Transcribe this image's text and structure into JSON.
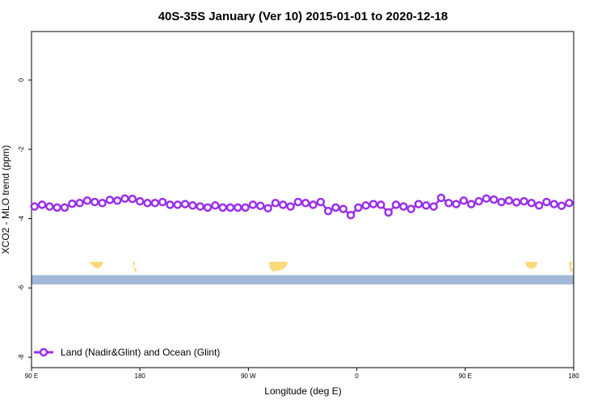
{
  "chart_data": {
    "type": "line",
    "title": "40S-35S January (Ver 10)   2015-01-01 to 2020-12-18",
    "xlabel": "Longitude (deg E)",
    "ylabel": "XCO2 - MLO trend (ppm)",
    "xlim": [
      90,
      450
    ],
    "ylim": [
      -8.3,
      1.4
    ],
    "x_ticks": [
      {
        "value": 90,
        "label": "90 E"
      },
      {
        "value": 162,
        "label": "180"
      },
      {
        "value": 234,
        "label": "90 W"
      },
      {
        "value": 306,
        "label": "0"
      },
      {
        "value": 378,
        "label": "90 E"
      },
      {
        "value": 450,
        "label": "180"
      }
    ],
    "y_ticks": [
      {
        "value": 0,
        "label": "0"
      },
      {
        "value": -2,
        "label": "-2"
      },
      {
        "value": -4,
        "label": "-4"
      },
      {
        "value": -6,
        "label": "-6"
      },
      {
        "value": -8,
        "label": "-8"
      }
    ],
    "legend": {
      "position": "bottom-left"
    },
    "land_ocean_strip": {
      "y_top": -5.63,
      "y_bottom": -5.9,
      "ocean_color": "#a3b8d9",
      "land_color": "#fcd97a"
    },
    "series": [
      {
        "name": "Land (Nadir&Glint) and Ocean (Glint)",
        "color": "#9b30e8",
        "x": [
          92,
          97,
          102,
          107,
          112,
          117,
          122,
          127,
          132,
          137,
          142,
          147,
          152,
          157,
          162,
          167,
          172,
          177,
          182,
          187,
          192,
          197,
          202,
          207,
          212,
          217,
          222,
          227,
          232,
          237,
          242,
          247,
          252,
          257,
          262,
          267,
          272,
          277,
          282,
          287,
          292,
          297,
          302,
          307,
          312,
          317,
          322,
          327,
          332,
          337,
          342,
          347,
          352,
          357,
          362,
          367,
          372,
          377,
          382,
          387,
          392,
          397,
          402,
          407,
          412,
          417,
          422,
          427,
          432,
          437,
          442,
          447
        ],
        "y": [
          -3.65,
          -3.6,
          -3.65,
          -3.68,
          -3.68,
          -3.57,
          -3.55,
          -3.48,
          -3.52,
          -3.55,
          -3.46,
          -3.48,
          -3.42,
          -3.43,
          -3.5,
          -3.55,
          -3.55,
          -3.52,
          -3.6,
          -3.6,
          -3.58,
          -3.62,
          -3.65,
          -3.68,
          -3.62,
          -3.68,
          -3.68,
          -3.68,
          -3.68,
          -3.6,
          -3.63,
          -3.7,
          -3.55,
          -3.6,
          -3.65,
          -3.52,
          -3.55,
          -3.6,
          -3.52,
          -3.78,
          -3.68,
          -3.72,
          -3.9,
          -3.68,
          -3.62,
          -3.58,
          -3.6,
          -3.82,
          -3.6,
          -3.65,
          -3.72,
          -3.58,
          -3.62,
          -3.65,
          -3.4,
          -3.55,
          -3.58,
          -3.48,
          -3.58,
          -3.5,
          -3.42,
          -3.45,
          -3.52,
          -3.48,
          -3.53,
          -3.5,
          -3.55,
          -3.62,
          -3.52,
          -3.58,
          -3.63,
          -3.55
        ]
      }
    ]
  }
}
